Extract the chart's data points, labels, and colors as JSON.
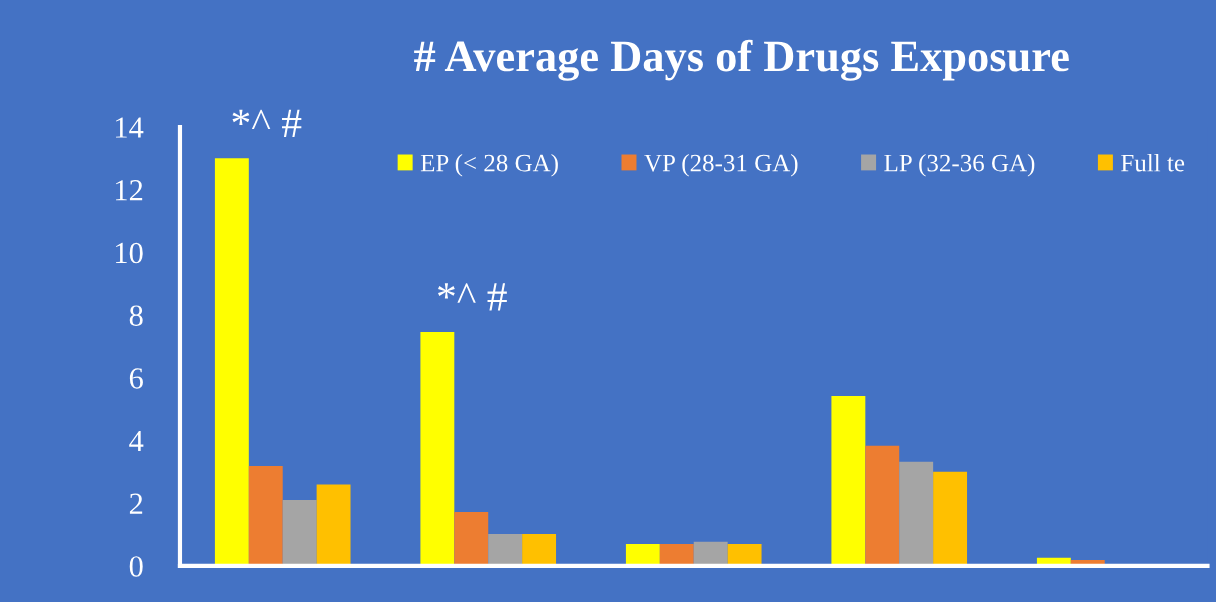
{
  "chart_data": {
    "type": "bar",
    "title": "# Average Days of Drugs Exposure",
    "categories": [
      null,
      null,
      null,
      null,
      null
    ],
    "series": [
      {
        "name": "EP (< 28 GA)",
        "color": "#ffff00",
        "values": [
          13.0,
          7.46,
          0.7,
          5.42,
          0.26
        ]
      },
      {
        "name": "VP (28-31 GA)",
        "color": "#ed7d31",
        "values": [
          3.19,
          1.72,
          0.7,
          3.83,
          0.19
        ]
      },
      {
        "name": "LP (32-36 GA)",
        "color": "#a5a5a5",
        "values": [
          2.1,
          1.02,
          0.77,
          3.32,
          null
        ]
      },
      {
        "name": "Full te",
        "color": "#ffc000",
        "values": [
          2.6,
          1.02,
          0.7,
          3.0,
          null
        ]
      }
    ],
    "annotations": [
      "*^ #",
      "*^ #"
    ],
    "ylim": [
      0,
      14
    ],
    "yticks": [
      0,
      2,
      4,
      6,
      8,
      10,
      12,
      14
    ],
    "grid": false,
    "legend": "top right"
  }
}
